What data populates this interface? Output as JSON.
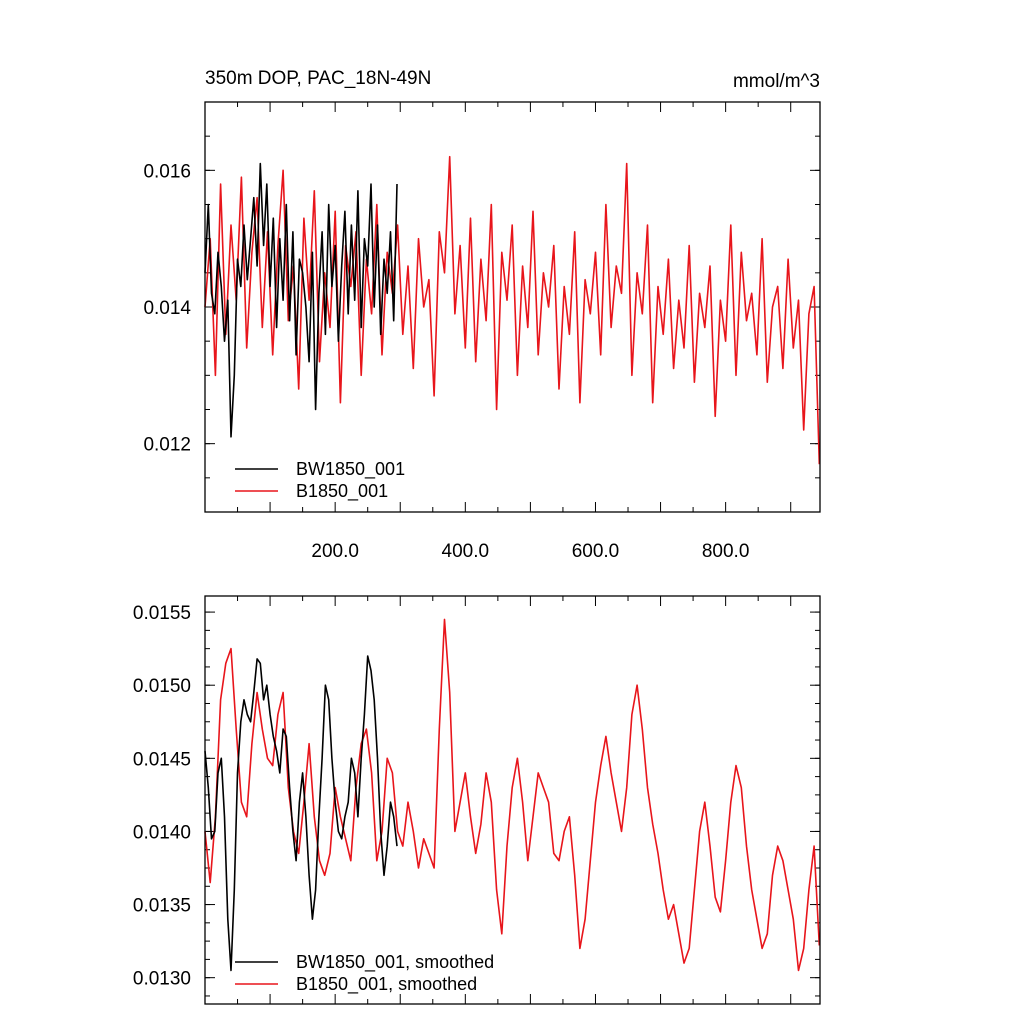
{
  "chart_data": [
    {
      "type": "line",
      "title": "350m DOP, PAC_18N-49N",
      "units": "mmol/m^3",
      "xlabel": "",
      "ylabel": "",
      "xlim": [
        0,
        945
      ],
      "ylim": [
        0.011,
        0.017
      ],
      "xticks": [
        200,
        400,
        600,
        800
      ],
      "xtick_labels": [
        "200.0",
        "400.0",
        "600.0",
        "800.0"
      ],
      "yticks": [
        0.012,
        0.014,
        0.016
      ],
      "ytick_labels": [
        "0.012",
        "0.014",
        "0.016"
      ],
      "legend": "bottom-left",
      "grid": false,
      "series": [
        {
          "name": "BW1850_001",
          "color": "#000000",
          "x": [
            0,
            5,
            10,
            15,
            20,
            25,
            30,
            35,
            40,
            45,
            50,
            55,
            60,
            65,
            70,
            75,
            80,
            85,
            90,
            95,
            100,
            105,
            110,
            115,
            120,
            125,
            130,
            135,
            140,
            145,
            150,
            155,
            160,
            165,
            170,
            175,
            180,
            185,
            190,
            195,
            200,
            205,
            210,
            215,
            220,
            225,
            230,
            235,
            240,
            245,
            250,
            255,
            260,
            265,
            270,
            275,
            280,
            285,
            290,
            295
          ],
          "values": [
            0.0145,
            0.0155,
            0.0142,
            0.0139,
            0.0148,
            0.0143,
            0.0135,
            0.0141,
            0.0121,
            0.013,
            0.0147,
            0.0143,
            0.0152,
            0.0144,
            0.015,
            0.0156,
            0.0146,
            0.0161,
            0.0149,
            0.0158,
            0.0143,
            0.0153,
            0.0137,
            0.015,
            0.0141,
            0.0155,
            0.0138,
            0.0151,
            0.0133,
            0.0147,
            0.0145,
            0.014,
            0.0132,
            0.0148,
            0.0125,
            0.0142,
            0.0151,
            0.0136,
            0.0155,
            0.0143,
            0.0149,
            0.0135,
            0.0146,
            0.0154,
            0.0139,
            0.0152,
            0.0141,
            0.0157,
            0.0137,
            0.015,
            0.0146,
            0.0158,
            0.014,
            0.0152,
            0.0136,
            0.0147,
            0.0142,
            0.0151,
            0.0138,
            0.0158
          ]
        },
        {
          "name": "B1850_001",
          "color": "#e8151b",
          "x": [
            0,
            8,
            16,
            24,
            32,
            40,
            48,
            56,
            64,
            72,
            80,
            88,
            96,
            104,
            112,
            120,
            128,
            136,
            144,
            152,
            160,
            168,
            176,
            184,
            192,
            200,
            208,
            216,
            224,
            232,
            240,
            248,
            256,
            264,
            272,
            280,
            288,
            296,
            304,
            312,
            320,
            328,
            336,
            344,
            352,
            360,
            368,
            376,
            384,
            392,
            400,
            408,
            416,
            424,
            432,
            440,
            448,
            456,
            464,
            472,
            480,
            488,
            496,
            504,
            512,
            520,
            528,
            536,
            544,
            552,
            560,
            568,
            576,
            584,
            592,
            600,
            608,
            616,
            624,
            632,
            640,
            648,
            656,
            664,
            672,
            680,
            688,
            696,
            704,
            712,
            720,
            728,
            736,
            744,
            752,
            760,
            768,
            776,
            784,
            792,
            800,
            808,
            816,
            824,
            832,
            840,
            848,
            856,
            864,
            872,
            880,
            888,
            896,
            904,
            912,
            920,
            928,
            936,
            944
          ],
          "values": [
            0.014,
            0.015,
            0.013,
            0.0158,
            0.0136,
            0.0152,
            0.0141,
            0.0159,
            0.0134,
            0.0148,
            0.0156,
            0.0137,
            0.0151,
            0.0133,
            0.0149,
            0.016,
            0.0138,
            0.0146,
            0.0128,
            0.0153,
            0.0141,
            0.0157,
            0.0132,
            0.0145,
            0.0137,
            0.0154,
            0.0126,
            0.0149,
            0.0143,
            0.0151,
            0.013,
            0.0147,
            0.0139,
            0.0155,
            0.0133,
            0.0148,
            0.0142,
            0.0152,
            0.0136,
            0.0146,
            0.0131,
            0.015,
            0.014,
            0.0144,
            0.0127,
            0.0151,
            0.0145,
            0.0162,
            0.0139,
            0.0149,
            0.0134,
            0.0153,
            0.0132,
            0.0147,
            0.0138,
            0.0155,
            0.0125,
            0.0148,
            0.0141,
            0.0152,
            0.013,
            0.0146,
            0.0137,
            0.0154,
            0.0133,
            0.0145,
            0.014,
            0.0149,
            0.0128,
            0.0143,
            0.0136,
            0.0151,
            0.0126,
            0.0144,
            0.0139,
            0.0148,
            0.0133,
            0.0155,
            0.0137,
            0.0146,
            0.0142,
            0.0161,
            0.013,
            0.0145,
            0.0139,
            0.0152,
            0.0126,
            0.0143,
            0.0136,
            0.0147,
            0.0131,
            0.0141,
            0.0134,
            0.0149,
            0.0129,
            0.0142,
            0.0137,
            0.0146,
            0.0124,
            0.0141,
            0.0135,
            0.0152,
            0.013,
            0.0148,
            0.0138,
            0.0142,
            0.0133,
            0.015,
            0.0129,
            0.014,
            0.0143,
            0.0131,
            0.0147,
            0.0134,
            0.0141,
            0.0122,
            0.0139,
            0.0143,
            0.0117
          ]
        }
      ]
    },
    {
      "type": "line",
      "title": "",
      "xlabel": "",
      "ylabel": "",
      "xlim": [
        0,
        945
      ],
      "ylim": [
        0.01282,
        0.01561
      ],
      "yticks": [
        0.013,
        0.0135,
        0.014,
        0.0145,
        0.015,
        0.0155
      ],
      "ytick_labels": [
        "0.0130",
        "0.0135",
        "0.0140",
        "0.0145",
        "0.0150",
        "0.0155"
      ],
      "legend": "bottom-left",
      "grid": false,
      "series": [
        {
          "name": "BW1850_001, smoothed",
          "color": "#000000",
          "x": [
            0,
            5,
            10,
            15,
            20,
            25,
            30,
            35,
            40,
            45,
            50,
            55,
            60,
            65,
            70,
            75,
            80,
            85,
            90,
            95,
            100,
            105,
            110,
            115,
            120,
            125,
            130,
            135,
            140,
            145,
            150,
            155,
            160,
            165,
            170,
            175,
            180,
            185,
            190,
            195,
            200,
            205,
            210,
            215,
            220,
            225,
            230,
            235,
            240,
            245,
            250,
            255,
            260,
            265,
            270,
            275,
            280,
            285,
            290,
            295
          ],
          "values": [
            0.01455,
            0.0143,
            0.01395,
            0.014,
            0.0144,
            0.0145,
            0.0141,
            0.0134,
            0.01305,
            0.0136,
            0.0144,
            0.01475,
            0.0149,
            0.0148,
            0.01475,
            0.01495,
            0.01518,
            0.01515,
            0.0149,
            0.015,
            0.0148,
            0.01465,
            0.01455,
            0.0144,
            0.0147,
            0.01465,
            0.0143,
            0.014,
            0.0138,
            0.0142,
            0.0144,
            0.0141,
            0.0137,
            0.0134,
            0.0136,
            0.0141,
            0.0145,
            0.015,
            0.0149,
            0.0145,
            0.0142,
            0.014,
            0.01395,
            0.0141,
            0.0142,
            0.0145,
            0.0144,
            0.0141,
            0.0145,
            0.0148,
            0.0152,
            0.0151,
            0.0149,
            0.0145,
            0.014,
            0.0137,
            0.0139,
            0.0142,
            0.0141,
            0.0139
          ]
        },
        {
          "name": "B1850_001, smoothed",
          "color": "#e8151b",
          "x": [
            0,
            8,
            16,
            24,
            32,
            40,
            48,
            56,
            64,
            72,
            80,
            88,
            96,
            104,
            112,
            120,
            128,
            136,
            144,
            152,
            160,
            168,
            176,
            184,
            192,
            200,
            208,
            216,
            224,
            232,
            240,
            248,
            256,
            264,
            272,
            280,
            288,
            296,
            304,
            312,
            320,
            328,
            336,
            344,
            352,
            360,
            368,
            376,
            384,
            392,
            400,
            408,
            416,
            424,
            432,
            440,
            448,
            456,
            464,
            472,
            480,
            488,
            496,
            504,
            512,
            520,
            528,
            536,
            544,
            552,
            560,
            568,
            576,
            584,
            592,
            600,
            608,
            616,
            624,
            632,
            640,
            648,
            656,
            664,
            672,
            680,
            688,
            696,
            704,
            712,
            720,
            728,
            736,
            744,
            752,
            760,
            768,
            776,
            784,
            792,
            800,
            808,
            816,
            824,
            832,
            840,
            848,
            856,
            864,
            872,
            880,
            888,
            896,
            904,
            912,
            920,
            928,
            936,
            944
          ],
          "values": [
            0.014,
            0.01365,
            0.0141,
            0.0149,
            0.01515,
            0.01525,
            0.0147,
            0.0142,
            0.0141,
            0.0146,
            0.01495,
            0.0147,
            0.0145,
            0.01445,
            0.0148,
            0.01495,
            0.0143,
            0.014,
            0.01385,
            0.0142,
            0.0146,
            0.0141,
            0.0138,
            0.0137,
            0.01385,
            0.0143,
            0.0141,
            0.01395,
            0.0138,
            0.0143,
            0.0146,
            0.0147,
            0.0144,
            0.0138,
            0.014,
            0.0145,
            0.0144,
            0.014,
            0.0139,
            0.0142,
            0.014,
            0.01375,
            0.01395,
            0.01385,
            0.01375,
            0.0147,
            0.01545,
            0.01495,
            0.014,
            0.0142,
            0.0144,
            0.0141,
            0.01385,
            0.01405,
            0.0144,
            0.0142,
            0.0136,
            0.0133,
            0.0139,
            0.0143,
            0.0145,
            0.0142,
            0.0138,
            0.0141,
            0.0144,
            0.0143,
            0.0142,
            0.01385,
            0.0138,
            0.014,
            0.0141,
            0.0137,
            0.0132,
            0.0134,
            0.0138,
            0.0142,
            0.01445,
            0.01465,
            0.0144,
            0.0142,
            0.014,
            0.0143,
            0.0148,
            0.015,
            0.0147,
            0.0143,
            0.01405,
            0.01385,
            0.0136,
            0.0134,
            0.0135,
            0.0133,
            0.0131,
            0.0132,
            0.0136,
            0.014,
            0.0142,
            0.0139,
            0.01355,
            0.01345,
            0.0138,
            0.0142,
            0.01445,
            0.0143,
            0.0139,
            0.0136,
            0.0134,
            0.0132,
            0.0133,
            0.0137,
            0.0139,
            0.0138,
            0.0136,
            0.0134,
            0.01305,
            0.0132,
            0.0136,
            0.0139,
            0.01322
          ]
        }
      ]
    }
  ]
}
